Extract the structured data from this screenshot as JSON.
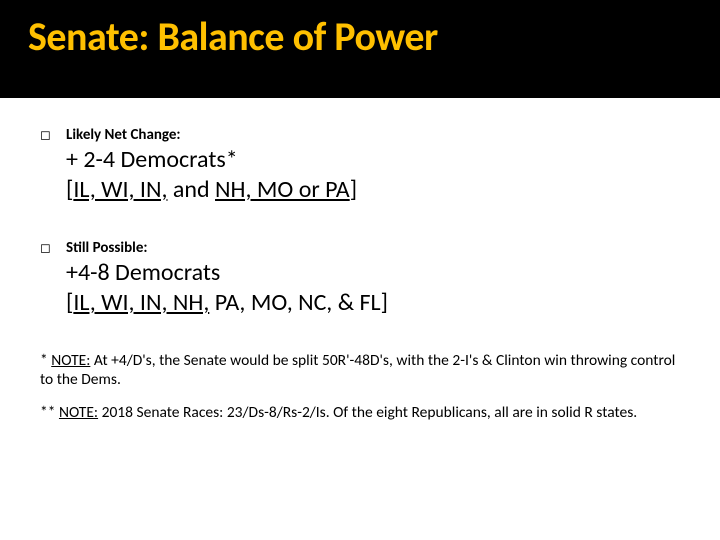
{
  "title": "Senate: Balance of Power",
  "items": [
    {
      "label": "Likely Net Change:",
      "line1": "+ 2-4  Democrats*",
      "line2_a": "[",
      "line2_b": "IL, WI, IN,",
      "line2_c": "  and ",
      "line2_d": "NH, MO or PA",
      "line2_e": "]"
    },
    {
      "label": "Still Possible:",
      "line1": "+4-8 Democrats",
      "line2_a": "[",
      "line2_b": "IL, WI, IN, NH,",
      "line2_c": " PA, MO, NC, & FL",
      "line2_d": "",
      "line2_e": "]"
    }
  ],
  "footnotes": [
    {
      "prefix": "* ",
      "u": "NOTE:",
      "text": " At +4/D's, the Senate would be split 50R'-48D's, with the 2-I's & Clinton win throwing control to the Dems."
    },
    {
      "prefix": "** ",
      "u": "NOTE:",
      "text": " 2018 Senate Races: 23/Ds-8/Rs-2/Is.  Of the eight Republicans, all are in solid R states."
    }
  ],
  "colors": {
    "title": "#ffc000",
    "title_bg": "#000000",
    "text": "#000000"
  }
}
